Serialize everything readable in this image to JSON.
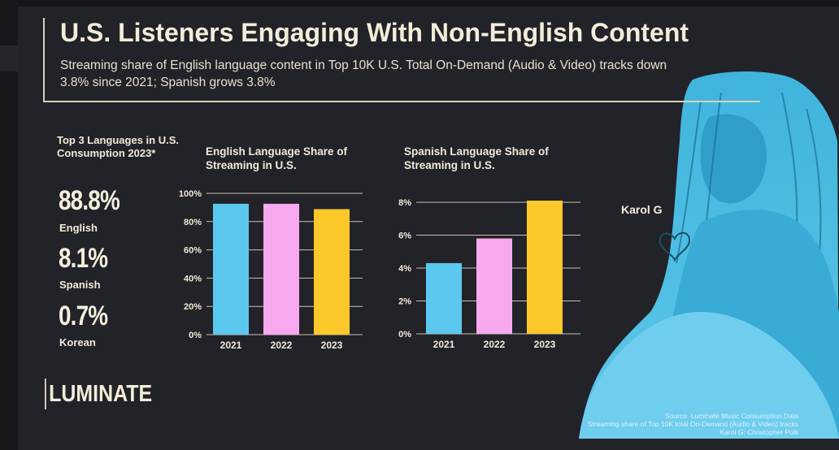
{
  "header": {
    "title": "U.S. Listeners Engaging With Non-English Content",
    "subtitle": "Streaming share of English language content in Top 10K U.S. Total On-Demand (Audio & Video) tracks down 3.8% since 2021; Spanish grows 3.8%"
  },
  "sidebar": {
    "heading": "Top 3 Languages in U.S. Consumption 2023*",
    "stats": [
      {
        "value": "88.8%",
        "label": "English"
      },
      {
        "value": "8.1%",
        "label": "Spanish"
      },
      {
        "value": "0.7%",
        "label": "Korean"
      }
    ]
  },
  "logo": "LUMINATE",
  "photo": {
    "caption": "Karol G"
  },
  "source": {
    "line1": "Source: Luminate Music Consumption Data",
    "line2": "Streaming share of Top 10K total On-Demand (Audio & Video) tracks",
    "line3": "Karol G: Christopher Polk"
  },
  "colors": {
    "y2021": "#5bc8ef",
    "y2022": "#f7a8ee",
    "y2023": "#fcc82a",
    "background": "#222329",
    "text": "#f1ead8"
  },
  "chart_data": [
    {
      "type": "bar",
      "title": "English Language Share of Streaming in U.S.",
      "categories": [
        "2021",
        "2022",
        "2023"
      ],
      "values": [
        92.6,
        92.6,
        88.8
      ],
      "ylim": [
        0,
        100
      ],
      "yticks": [
        "0%",
        "20%",
        "40%",
        "60%",
        "80%",
        "100%"
      ],
      "grid": true
    },
    {
      "type": "bar",
      "title": "Spanish Language Share of Streaming in U.S.",
      "categories": [
        "2021",
        "2022",
        "2023"
      ],
      "values": [
        4.3,
        5.8,
        8.1
      ],
      "ylim": [
        0,
        8
      ],
      "yticks": [
        "0%",
        "2%",
        "4%",
        "6%",
        "8%"
      ],
      "grid": true
    }
  ]
}
